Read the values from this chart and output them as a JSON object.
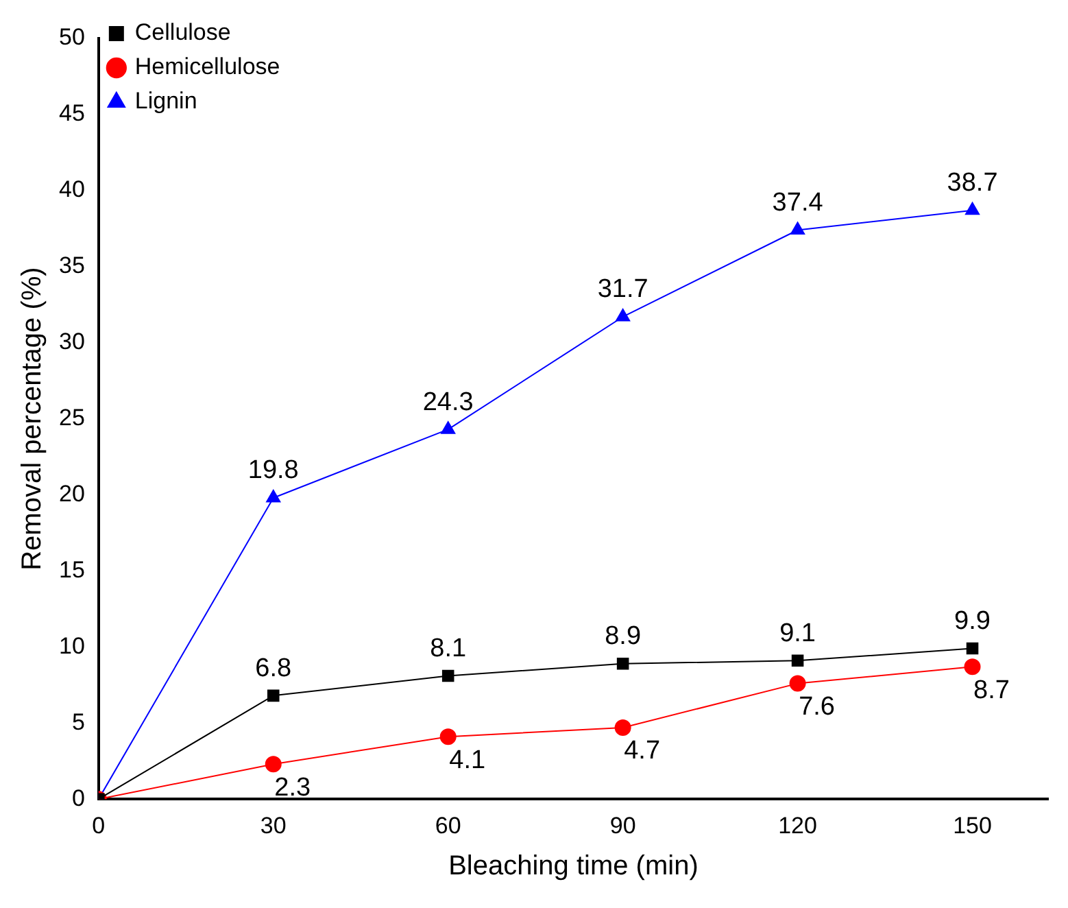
{
  "chart_data": {
    "type": "line",
    "xlabel": "Bleaching time (min)",
    "ylabel": "Removal percentage (%)",
    "x": [
      0,
      30,
      60,
      90,
      120,
      150
    ],
    "xlim": [
      0,
      163
    ],
    "xticks": [
      0,
      30,
      60,
      90,
      120,
      150
    ],
    "ylim": [
      0,
      50
    ],
    "yticks": [
      0,
      5,
      10,
      15,
      20,
      25,
      30,
      35,
      40,
      45,
      50
    ],
    "series": [
      {
        "name": "Cellulose",
        "color": "#000000",
        "marker": "square",
        "values": [
          0,
          6.8,
          8.1,
          8.9,
          9.1,
          9.9
        ],
        "value_labels": [
          null,
          "6.8",
          "8.1",
          "8.9",
          "9.1",
          "9.9"
        ]
      },
      {
        "name": "Hemicellulose",
        "color": "#ff0000",
        "marker": "circle",
        "values": [
          0,
          2.3,
          4.1,
          4.7,
          7.6,
          8.7
        ],
        "value_labels": [
          null,
          "2.3",
          "4.1",
          "4.7",
          "7.6",
          "8.7"
        ]
      },
      {
        "name": "Lignin",
        "color": "#0000ff",
        "marker": "triangle",
        "values": [
          0,
          19.8,
          24.3,
          31.7,
          37.4,
          38.7
        ],
        "value_labels": [
          null,
          "19.8",
          "24.3",
          "31.7",
          "37.4",
          "38.7"
        ]
      }
    ],
    "legend": "top left",
    "grid": false,
    "line_style": "solid"
  }
}
